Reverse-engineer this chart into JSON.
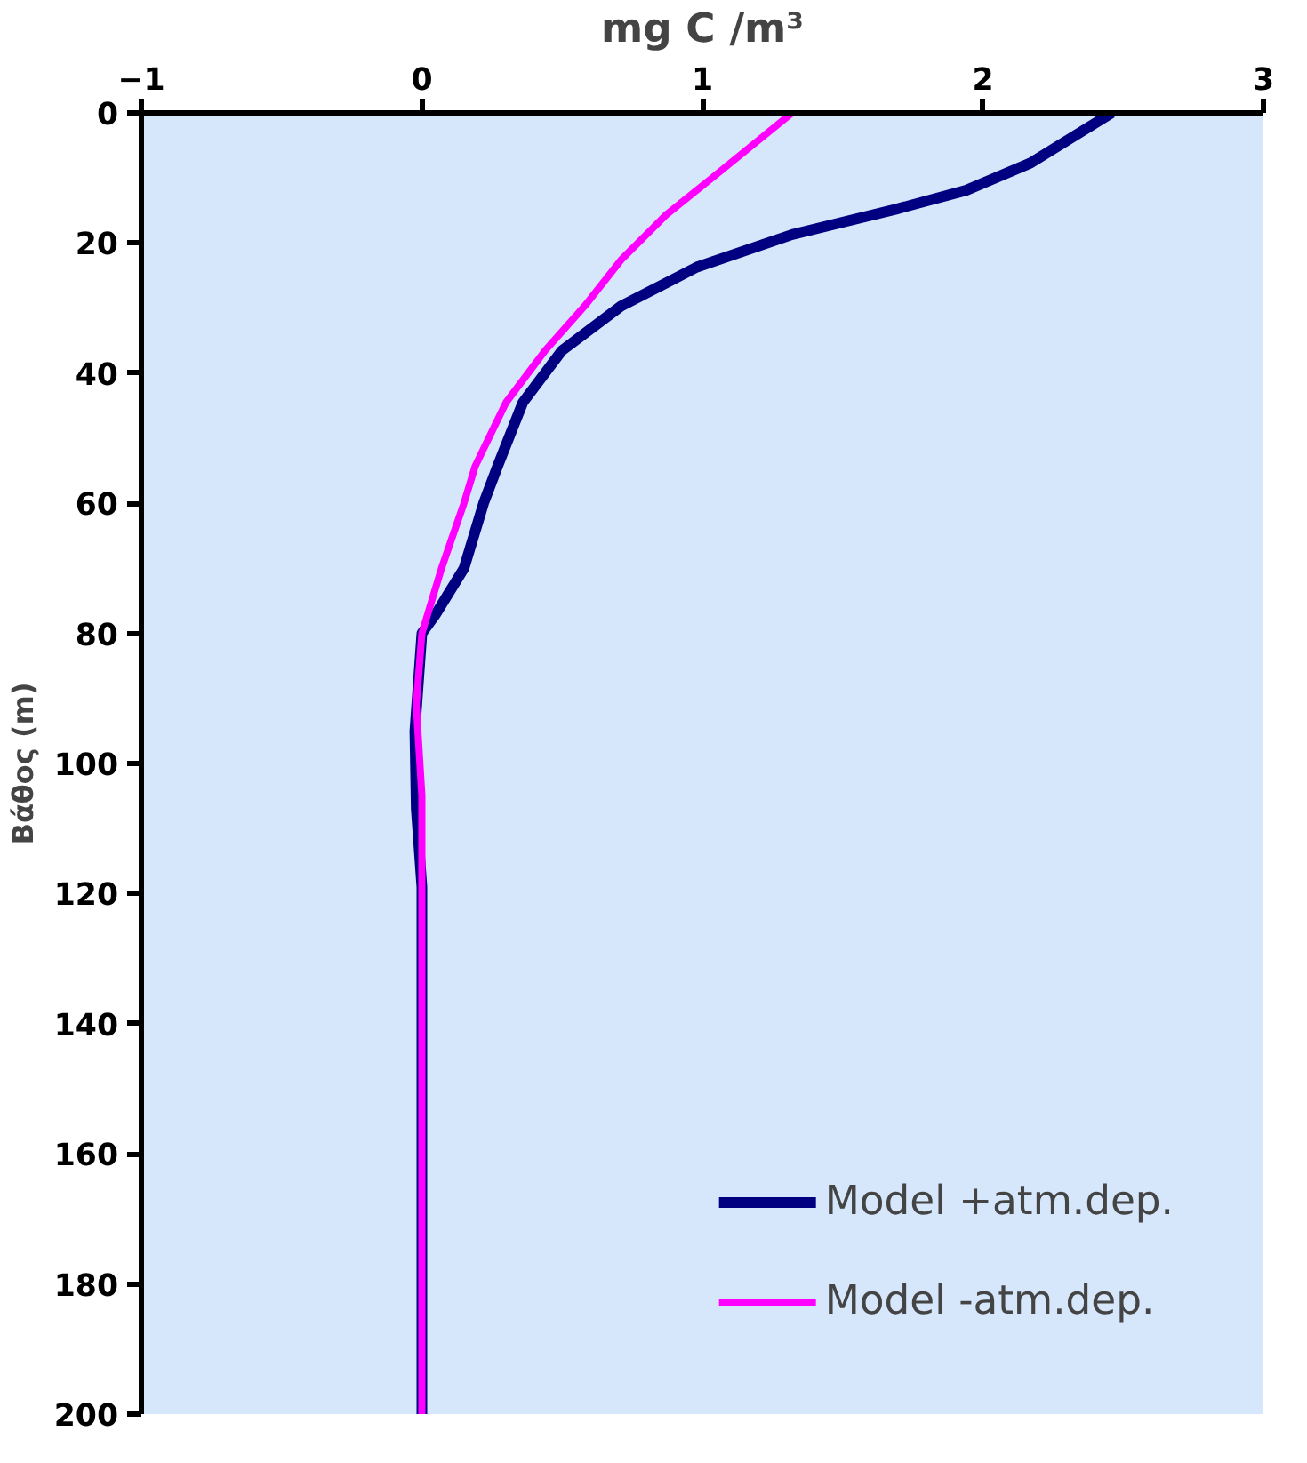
{
  "chart_data": {
    "type": "line",
    "xlabel": "mg C /m³",
    "ylabel": "Βάθος (m)",
    "xlim": [
      -1,
      3
    ],
    "xticks": [
      -1,
      0,
      1,
      2,
      3
    ],
    "ylim": [
      200,
      0
    ],
    "yticks": [
      0,
      20,
      40,
      60,
      80,
      100,
      120,
      140,
      160,
      180,
      200
    ],
    "grid": false,
    "legend": "bottom right",
    "marker": "none",
    "line_style": "solid",
    "series": [
      {
        "name": "Model +atm.dep.",
        "color": "#000080",
        "x": [
          2.46,
          2.17,
          1.94,
          1.69,
          1.32,
          0.98,
          0.71,
          0.5,
          0.36,
          0.27,
          0.22,
          0.15,
          0.05,
          0,
          -0.025,
          -0.02,
          0,
          0
        ],
        "values": [
          0,
          7.7,
          11.9,
          14.8,
          18.7,
          23.7,
          29.7,
          36.5,
          44.5,
          54.3,
          60,
          70,
          77,
          80,
          95,
          107,
          119,
          200
        ]
      },
      {
        "name": "Model -atm.dep.",
        "color": "#ff00ff",
        "x": [
          1.32,
          1.04,
          0.87,
          0.71,
          0.58,
          0.44,
          0.3,
          0.19,
          0.15,
          0.07,
          0,
          -0.02,
          0,
          0
        ],
        "values": [
          0,
          9.8,
          15.7,
          22.6,
          29.7,
          36.5,
          44.5,
          54.3,
          60,
          70,
          80,
          91,
          105,
          200
        ]
      }
    ]
  }
}
